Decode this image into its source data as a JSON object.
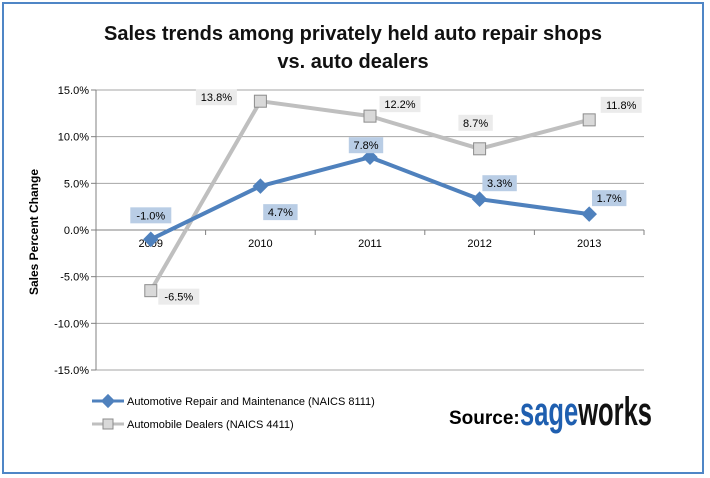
{
  "chart_data": {
    "type": "line",
    "title": "Sales trends among privately  held auto repair shops vs. auto dealers",
    "title_lines": [
      "Sales trends among privately  held auto repair shops",
      "vs. auto dealers"
    ],
    "xlabel": "",
    "ylabel": "Sales Percent Change",
    "categories": [
      "2009",
      "2010",
      "2011",
      "2012",
      "2013"
    ],
    "ylim": [
      -15,
      15
    ],
    "yticks": [
      15,
      10,
      5,
      0,
      -5,
      -10,
      -15
    ],
    "ytick_labels": [
      "15.0%",
      "10.0%",
      "5.0%",
      "0.0%",
      "-5.0%",
      "-10.0%",
      "-15.0%"
    ],
    "grid": true,
    "legend_position": "bottom-left",
    "series": [
      {
        "name": "Automotive Repair and Maintenance (NAICS 8111)",
        "values": [
          -1.0,
          4.7,
          7.8,
          3.3,
          1.7
        ],
        "labels": [
          "-1.0%",
          "4.7%",
          "7.8%",
          "3.3%",
          "1.7%"
        ],
        "marker": "diamond",
        "color": "#4f81bd",
        "label_bg": "#b9cde5"
      },
      {
        "name": "Automobile Dealers (NAICS 4411)",
        "values": [
          -6.5,
          13.8,
          12.2,
          8.7,
          11.8
        ],
        "labels": [
          "-6.5%",
          "13.8%",
          "12.2%",
          "8.7%",
          "11.8%"
        ],
        "marker": "square",
        "color": "#bfbfbf",
        "label_bg": "#ebebeb"
      }
    ]
  },
  "source": {
    "prefix": "Source:",
    "brand_part1": "sage",
    "brand_part2": "works",
    "brand_color1": "#1f5fb0",
    "brand_color2": "#111111"
  }
}
